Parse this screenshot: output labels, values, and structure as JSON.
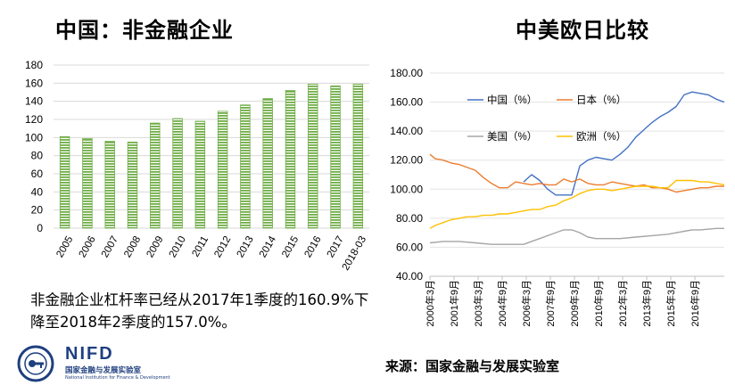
{
  "left_chart_title": "中国：非金融企业",
  "right_chart_title": "中美欧日比较",
  "caption": "非金融企业杠杆率已经从2017年1季度的160.9%下降至2018年2季度的157.0%。",
  "source": "来源：国家金融与发展实验室",
  "logo": {
    "wordmark": "NIFD",
    "name_cn": "国家金融与发展实验室",
    "name_en": "National Institution for Finance & Development"
  },
  "colors": {
    "bar": "#70ad47",
    "china": "#4472c4",
    "japan": "#ed7d31",
    "usa": "#a5a5a5",
    "euro": "#ffc000",
    "logo": "#1f3f7f"
  },
  "chart_data": [
    {
      "type": "bar",
      "title": "中国：非金融企业",
      "categories": [
        "2005",
        "2006",
        "2007",
        "2008",
        "2009",
        "2010",
        "2011",
        "2012",
        "2013",
        "2014",
        "2015",
        "2016",
        "2017",
        "2018-03"
      ],
      "values": [
        101,
        99,
        96,
        95,
        116,
        121,
        118,
        129,
        136,
        143,
        152,
        159,
        157,
        159
      ],
      "ylim": [
        0,
        180
      ],
      "yticks": [
        "0",
        "20",
        "40",
        "60",
        "80",
        "100",
        "120",
        "140",
        "160",
        "180"
      ],
      "grid": true,
      "bar_pattern": "horizontal-stripes"
    },
    {
      "type": "line",
      "title": "中美欧日比较",
      "ylim": [
        40,
        180
      ],
      "yticks": [
        "40.00",
        "60.00",
        "80.00",
        "100.00",
        "120.00",
        "140.00",
        "160.00",
        "180.00"
      ],
      "xticks": [
        "2000年3月",
        "2001年9月",
        "2003年3月",
        "2004年9月",
        "2006年3月",
        "2007年9月",
        "2009年3月",
        "2010年9月",
        "2012年3月",
        "2013年9月",
        "2015年3月",
        "2016年9月"
      ],
      "xrange": [
        2000.17,
        2018.5
      ],
      "legend_position": "top-left",
      "series": [
        {
          "name": "中国（%）",
          "color": "#4472c4",
          "x": [
            2006.0,
            2006.5,
            2007.0,
            2007.5,
            2008.0,
            2008.5,
            2009.0,
            2009.5,
            2010.0,
            2010.5,
            2011.0,
            2011.5,
            2012.0,
            2012.5,
            2013.0,
            2013.5,
            2014.0,
            2014.5,
            2015.0,
            2015.5,
            2016.0,
            2016.5,
            2017.0,
            2017.5,
            2018.0,
            2018.5
          ],
          "y": [
            105,
            110,
            106,
            100,
            96,
            96,
            96,
            116,
            120,
            122,
            121,
            120,
            124,
            129,
            136,
            141,
            146,
            150,
            153,
            157,
            165,
            167,
            166,
            165,
            162,
            160
          ]
        },
        {
          "name": "日本（%）",
          "color": "#ed7d31",
          "x": [
            2000.17,
            2000.5,
            2001.0,
            2001.5,
            2002.0,
            2002.5,
            2003.0,
            2003.5,
            2004.0,
            2004.5,
            2005.0,
            2005.5,
            2006.0,
            2006.5,
            2007.0,
            2007.5,
            2008.0,
            2008.5,
            2009.0,
            2009.5,
            2010.0,
            2010.5,
            2011.0,
            2011.5,
            2012.0,
            2012.5,
            2013.0,
            2013.5,
            2014.0,
            2014.5,
            2015.0,
            2015.5,
            2016.0,
            2016.5,
            2017.0,
            2017.5,
            2018.0,
            2018.5
          ],
          "y": [
            124,
            121,
            120,
            118,
            117,
            115,
            113,
            108,
            104,
            101,
            101,
            105,
            104,
            103,
            104,
            103,
            103,
            107,
            105,
            107,
            104,
            103,
            103,
            105,
            104,
            103,
            102,
            103,
            101,
            101,
            100,
            98,
            99,
            100,
            101,
            101,
            102,
            102
          ]
        },
        {
          "name": "美国（%）",
          "color": "#a5a5a5",
          "x": [
            2000.17,
            2001.0,
            2002.0,
            2003.0,
            2004.0,
            2005.0,
            2006.0,
            2007.0,
            2008.0,
            2008.5,
            2009.0,
            2009.5,
            2010.0,
            2010.5,
            2011.0,
            2012.0,
            2013.0,
            2014.0,
            2015.0,
            2016.0,
            2016.5,
            2017.0,
            2018.0,
            2018.5
          ],
          "y": [
            63,
            64,
            64,
            63,
            62,
            62,
            62,
            66,
            70,
            72,
            72,
            70,
            67,
            66,
            66,
            66,
            67,
            68,
            69,
            71,
            72,
            72,
            73,
            73
          ]
        },
        {
          "name": "欧洲（%）",
          "color": "#ffc000",
          "x": [
            2000.17,
            2000.5,
            2001.0,
            2001.5,
            2002.0,
            2002.5,
            2003.0,
            2003.5,
            2004.0,
            2004.5,
            2005.0,
            2005.5,
            2006.0,
            2006.5,
            2007.0,
            2007.5,
            2008.0,
            2008.5,
            2009.0,
            2009.5,
            2010.0,
            2010.5,
            2011.0,
            2011.5,
            2012.0,
            2012.5,
            2013.0,
            2013.5,
            2014.0,
            2014.5,
            2015.0,
            2015.5,
            2016.0,
            2016.5,
            2017.0,
            2017.5,
            2018.0,
            2018.5
          ],
          "y": [
            73,
            75,
            77,
            79,
            80,
            81,
            81,
            82,
            82,
            83,
            83,
            84,
            85,
            86,
            86,
            88,
            89,
            92,
            94,
            97,
            99,
            100,
            100,
            99,
            100,
            101,
            102,
            102,
            102,
            101,
            101,
            106,
            106,
            106,
            105,
            105,
            104,
            103
          ]
        }
      ]
    }
  ]
}
